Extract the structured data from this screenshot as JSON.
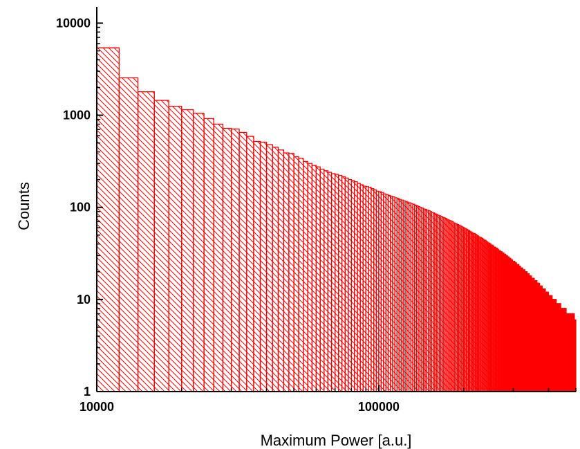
{
  "chart_data": {
    "type": "bar",
    "title": "",
    "xlabel": "Maximum Power [a.u.]",
    "ylabel": "Counts",
    "x_scale": "log",
    "y_scale": "log",
    "xlim": [
      10000,
      500000
    ],
    "ylim": [
      1,
      15000
    ],
    "x_ticks": [
      {
        "value": 10000,
        "label": "10000"
      },
      {
        "value": 100000,
        "label": "100000"
      }
    ],
    "y_ticks": [
      {
        "value": 1,
        "label": "1"
      },
      {
        "value": 10,
        "label": "10"
      },
      {
        "value": 100,
        "label": "100"
      },
      {
        "value": 1000,
        "label": "1000"
      },
      {
        "value": 10000,
        "label": "10000"
      }
    ],
    "bin_width": 2000,
    "bin_start": 10000,
    "bar_color": "#ff0000",
    "fill_pattern": "diagonal-hatch",
    "grid": false,
    "legend": "none",
    "counts": [
      5400,
      2550,
      1800,
      1450,
      1250,
      1150,
      1050,
      920,
      800,
      720,
      710,
      650,
      590,
      520,
      510,
      480,
      450,
      420,
      390,
      385,
      355,
      340,
      315,
      300,
      285,
      275,
      260,
      250,
      240,
      232,
      228,
      222,
      215,
      208,
      200,
      195,
      190,
      182,
      176,
      170,
      168,
      165,
      160,
      155,
      150,
      148,
      145,
      140,
      138,
      135,
      132,
      130,
      127,
      125,
      122,
      120,
      118,
      116,
      114,
      112,
      110,
      108,
      106,
      104,
      102,
      100,
      98,
      96,
      95,
      93,
      92,
      90,
      88,
      87,
      85,
      84,
      82,
      81,
      80,
      78,
      77,
      76,
      74,
      73,
      72,
      71,
      70,
      68,
      67,
      66,
      65,
      64,
      63,
      62,
      61,
      60,
      59,
      58,
      57,
      56,
      55,
      54,
      53,
      52,
      52,
      51,
      50,
      49,
      48,
      47,
      47,
      46,
      45,
      44,
      44,
      43,
      42,
      41,
      41,
      40,
      39,
      39,
      38,
      37,
      37,
      36,
      36,
      35,
      34,
      34,
      33,
      33,
      32,
      32,
      31,
      31,
      30,
      30,
      29,
      29,
      28,
      28,
      27,
      27,
      26,
      26,
      26,
      25,
      25,
      24,
      24,
      24,
      23,
      23,
      22,
      22,
      22,
      21,
      21,
      21,
      20,
      20,
      20,
      19,
      19,
      19,
      18,
      18,
      18,
      17,
      17,
      17,
      17,
      16,
      16,
      16,
      16,
      15,
      15,
      15,
      15,
      14,
      14,
      14,
      14,
      13,
      13,
      13,
      13,
      13,
      12,
      12,
      12,
      12,
      12,
      11,
      11,
      11,
      11,
      11,
      11,
      10,
      10,
      10,
      10,
      10,
      10,
      10,
      9,
      9,
      9,
      9,
      9,
      9,
      9,
      9,
      8,
      8,
      8,
      8,
      8,
      8,
      8,
      8,
      8,
      8,
      7,
      7,
      7,
      7,
      7,
      7,
      7,
      7,
      7,
      7,
      7,
      7,
      7,
      7,
      7,
      7,
      6,
      6,
      6,
      6,
      6,
      6,
      6,
      6
    ]
  }
}
